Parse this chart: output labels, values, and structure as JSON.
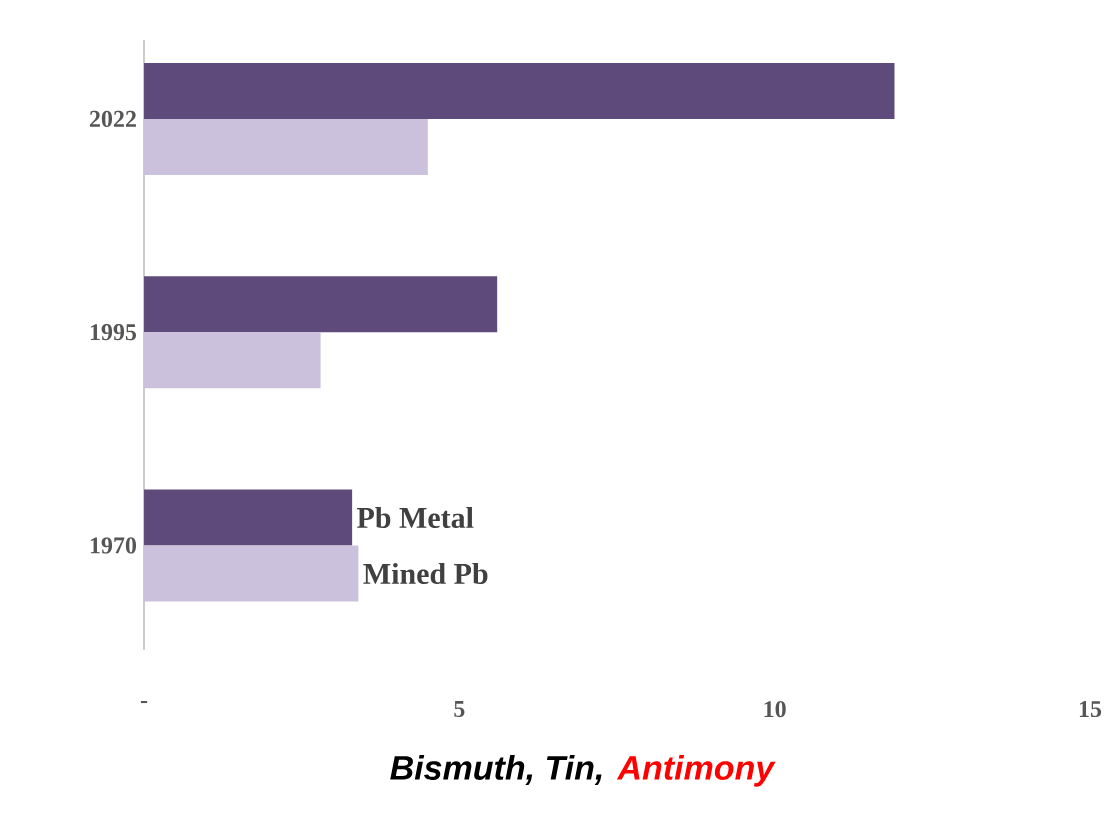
{
  "chart_data": {
    "type": "bar",
    "orientation": "horizontal",
    "xlabel": "Bismuth, Tin,",
    "annotations": [
      "Antimony"
    ],
    "categories": [
      "2022",
      "1995",
      "1970"
    ],
    "series": [
      {
        "name": "Pb Metal",
        "color": "#5f4b7b",
        "values": [
          11.9,
          5.6,
          3.3
        ]
      },
      {
        "name": "Mined Pb",
        "color": "#cbc1dc",
        "values": [
          4.5,
          2.8,
          3.4
        ]
      }
    ],
    "xlim": [
      0,
      15
    ],
    "xticks": [
      {
        "value": 0,
        "label": "-"
      },
      5,
      10,
      15
    ],
    "grid": false
  }
}
